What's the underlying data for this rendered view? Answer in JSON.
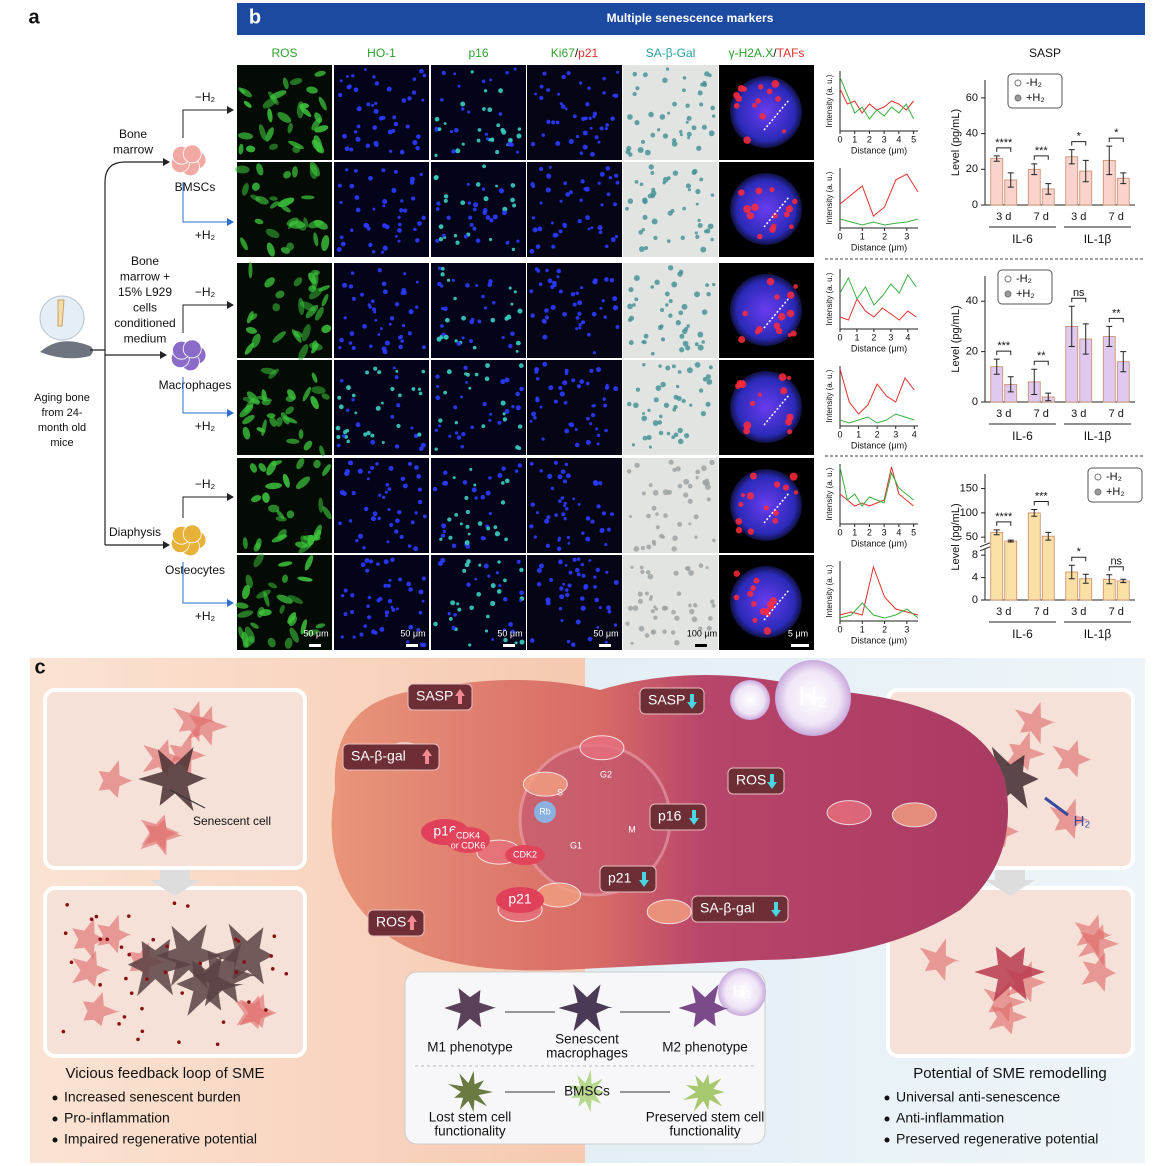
{
  "panel_labels": [
    "a",
    "b",
    "c"
  ],
  "panel_a": {
    "source": [
      "Aging bone",
      "from 24-",
      "month old",
      "mice"
    ],
    "branches": [
      {
        "origin": [
          "Bone",
          "marrow"
        ],
        "cell": "BMSCs"
      },
      {
        "origin": [
          "Bone",
          "marrow +",
          "15% L929",
          "cells",
          "conditioned",
          "medium"
        ],
        "cell": "Macrophages"
      },
      {
        "origin": [
          "Diaphysis"
        ],
        "cell": "Osteocytes"
      }
    ],
    "conditions": [
      "−H₂",
      "+H₂"
    ]
  },
  "panel_b": {
    "header": "Multiple senescence markers",
    "columns": [
      [
        "ROS"
      ],
      [
        "HO-1"
      ],
      [
        "p16"
      ],
      [
        "Ki67",
        "/",
        "p21"
      ],
      [
        "SA-β-Gal"
      ],
      [
        "γ-H2A.X",
        "/",
        "TAFs"
      ]
    ],
    "sasp_title": "SASP",
    "scale_bars": [
      "50 μm",
      "50 μm",
      "50 μm",
      "50 μm",
      "100 μm",
      "5 μm"
    ]
  },
  "chart_data": [
    {
      "type": "line",
      "ylabel": "Intensity (a. u.)",
      "xlabel": "Distance (μm)",
      "x": [
        0,
        0.5,
        1,
        1.5,
        2,
        2.5,
        3,
        3.5,
        4,
        4.5,
        5
      ],
      "xlim": [
        0,
        5.3
      ],
      "xticks": [
        0,
        1,
        2,
        3,
        4,
        5
      ],
      "ylim": [
        0,
        100
      ],
      "series": [
        {
          "color": "#e0312b",
          "values": [
            70,
            45,
            50,
            30,
            45,
            35,
            40,
            50,
            45,
            35,
            50
          ]
        },
        {
          "color": "#3cb043",
          "values": [
            90,
            60,
            30,
            40,
            20,
            35,
            25,
            40,
            30,
            45,
            20
          ]
        }
      ]
    },
    {
      "type": "line",
      "ylabel": "Intensity (a. u.)",
      "xlabel": "Distance (μm)",
      "x": [
        0,
        0.5,
        1,
        1.5,
        2,
        2.5,
        3,
        3.5
      ],
      "xlim": [
        0,
        3.5
      ],
      "xticks": [
        0,
        1,
        2,
        3
      ],
      "ylim": [
        0,
        100
      ],
      "series": [
        {
          "color": "#e0312b",
          "values": [
            40,
            55,
            70,
            20,
            35,
            80,
            90,
            60
          ]
        },
        {
          "color": "#3cb043",
          "values": [
            15,
            10,
            5,
            10,
            5,
            8,
            10,
            15
          ]
        }
      ]
    },
    {
      "type": "line",
      "ylabel": "Intensity (a. u.)",
      "xlabel": "Distance (μm)",
      "x": [
        0,
        0.5,
        1,
        1.5,
        2,
        2.5,
        3,
        3.5,
        4,
        4.5
      ],
      "xlim": [
        0,
        4.6
      ],
      "xticks": [
        0,
        1,
        2,
        3,
        4
      ],
      "ylim": [
        0,
        100
      ],
      "series": [
        {
          "color": "#e0312b",
          "values": [
            20,
            15,
            50,
            30,
            20,
            35,
            25,
            15,
            30,
            20
          ]
        },
        {
          "color": "#3cb043",
          "values": [
            60,
            85,
            50,
            70,
            40,
            55,
            75,
            60,
            90,
            70
          ]
        }
      ]
    },
    {
      "type": "line",
      "ylabel": "Intensity (a. u.)",
      "xlabel": "Distance (μm)",
      "x": [
        0,
        0.5,
        1,
        1.5,
        2,
        2.5,
        3,
        3.5,
        4
      ],
      "xlim": [
        0,
        4.2
      ],
      "xticks": [
        0,
        1,
        2,
        3,
        4
      ],
      "ylim": [
        0,
        100
      ],
      "series": [
        {
          "color": "#e0312b",
          "values": [
            95,
            40,
            20,
            35,
            70,
            50,
            40,
            80,
            60
          ]
        },
        {
          "color": "#3cb043",
          "values": [
            10,
            5,
            10,
            15,
            5,
            10,
            20,
            15,
            10
          ]
        }
      ]
    },
    {
      "type": "line",
      "ylabel": "Intensity (a. u.)",
      "xlabel": "Distance (μm)",
      "x": [
        0,
        0.5,
        1,
        1.5,
        2,
        2.5,
        3,
        3.5,
        4,
        4.5,
        5
      ],
      "xlim": [
        0,
        5.3
      ],
      "xticks": [
        0,
        1,
        2,
        3,
        4,
        5
      ],
      "ylim": [
        0,
        100
      ],
      "series": [
        {
          "color": "#e0312b",
          "values": [
            50,
            40,
            30,
            35,
            30,
            35,
            40,
            95,
            50,
            40,
            30
          ]
        },
        {
          "color": "#3cb043",
          "values": [
            95,
            40,
            50,
            30,
            45,
            40,
            35,
            85,
            60,
            50,
            40
          ]
        }
      ]
    },
    {
      "type": "line",
      "ylabel": "Intensity (a. u.)",
      "xlabel": "Distance (μm)",
      "x": [
        0,
        0.5,
        1,
        1.5,
        2,
        2.5,
        3,
        3.5
      ],
      "xlim": [
        0,
        3.5
      ],
      "xticks": [
        0,
        1,
        2,
        3
      ],
      "ylim": [
        0,
        100
      ],
      "series": [
        {
          "color": "#e0312b",
          "values": [
            10,
            15,
            10,
            90,
            40,
            20,
            15,
            10
          ]
        },
        {
          "color": "#3cb043",
          "values": [
            5,
            10,
            30,
            10,
            5,
            10,
            20,
            5
          ]
        }
      ]
    },
    {
      "type": "bar",
      "ylabel": "Level (pg/mL)",
      "categories": [
        "3 d",
        "7 d",
        "3 d",
        "7 d"
      ],
      "groups": [
        "IL-6",
        "IL-1β"
      ],
      "ylim": [
        0,
        70
      ],
      "yticks": [
        0,
        20,
        40,
        60
      ],
      "legend": "upper center",
      "series": [
        {
          "name": "-H₂",
          "color": "#f9d3cc",
          "values": [
            26,
            20,
            27,
            25
          ],
          "errors": [
            1.5,
            3,
            4,
            8
          ]
        },
        {
          "name": "+H₂",
          "color": "#f9d3cc",
          "values": [
            14,
            9,
            19,
            15
          ],
          "errors": [
            4,
            3,
            6,
            3
          ]
        }
      ],
      "significance": [
        "****",
        "***",
        "*",
        "*"
      ]
    },
    {
      "type": "bar",
      "ylabel": "Level (pg/mL)",
      "categories": [
        "3 d",
        "7 d",
        "3 d",
        "7 d"
      ],
      "groups": [
        "IL-6",
        "IL-1β"
      ],
      "ylim": [
        0,
        50
      ],
      "yticks": [
        0,
        20,
        40
      ],
      "legend": "upper left",
      "series": [
        {
          "name": "-H₂",
          "color": "#dfc9ef",
          "values": [
            14,
            8,
            30,
            26
          ],
          "errors": [
            3,
            5,
            8,
            4
          ]
        },
        {
          "name": "+H₂",
          "color": "#dfc9ef",
          "values": [
            7,
            2,
            25,
            16
          ],
          "errors": [
            3,
            1.5,
            6,
            4
          ]
        }
      ],
      "significance": [
        "***",
        "**",
        "ns",
        "**"
      ]
    },
    {
      "type": "bar",
      "ylabel": "Level (pg/mL)",
      "categories": [
        "3 d",
        "7 d",
        "3 d",
        "7 d"
      ],
      "groups": [
        "IL-6",
        "IL-1β"
      ],
      "ylim": [
        0,
        180
      ],
      "y_break": [
        9,
        40
      ],
      "yticks": [
        0,
        4,
        8,
        50,
        100,
        150
      ],
      "legend": "upper right",
      "series": [
        {
          "name": "-H₂",
          "color": "#fbe0a5",
          "values": [
            60,
            100,
            5,
            3.7
          ],
          "errors": [
            5,
            7,
            1.2,
            0.8
          ]
        },
        {
          "name": "+H₂",
          "color": "#fbe0a5",
          "values": [
            42,
            52,
            3.8,
            3.4
          ],
          "errors": [
            2,
            8,
            0.8,
            0.3
          ]
        }
      ],
      "significance": [
        "****",
        "***",
        "*",
        "ns"
      ]
    }
  ],
  "panel_c": {
    "left": {
      "label": "Senescent cell",
      "title": "Vicious feedback loop of SME",
      "bullets": [
        "Increased senescent burden",
        "Pro-inflammation",
        "Impaired regenerative potential"
      ]
    },
    "right": {
      "label": "H₂",
      "title": "Potential of SME remodelling",
      "bullets": [
        "Universal anti-senescence",
        "Anti-inflammation",
        "Preserved regenerative potential"
      ]
    },
    "cell_left": [
      "SASP",
      "SA-β-gal",
      "p16",
      "p21",
      "ROS"
    ],
    "pathway": [
      "CDK4",
      "or CDK6",
      "Rb",
      "CDK2"
    ],
    "cycle": [
      "S",
      "G2",
      "M",
      "G1"
    ],
    "cell_right": [
      "SASP",
      "ROS",
      "p16",
      "p21",
      "SA-β-gal"
    ],
    "h2": "H₂",
    "phenotypes": {
      "h2": "H₂",
      "macro": [
        [
          "M1 phenotype"
        ],
        [
          "Senescent",
          "macrophages"
        ],
        [
          "M2 phenotype"
        ]
      ],
      "stem": [
        [
          "Lost stem cell",
          "functionality"
        ],
        [
          "BMSCs"
        ],
        [
          "Preserved stem cell",
          "functionality"
        ]
      ]
    }
  }
}
